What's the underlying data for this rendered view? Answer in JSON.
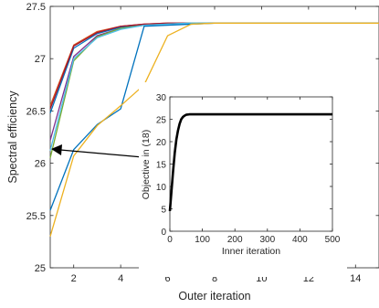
{
  "chart_data": [
    {
      "type": "line",
      "xlabel": "Outer iteration",
      "ylabel": "Spectral efficiency",
      "xlim": [
        1,
        15
      ],
      "ylim": [
        25,
        27.5
      ],
      "xticks": [
        2,
        4,
        6,
        8,
        10,
        12,
        14
      ],
      "yticks": [
        25,
        25.5,
        26,
        26.5,
        27,
        27.5
      ],
      "grid": false,
      "series": [
        {
          "color": "#0072BD",
          "x": [
            1,
            2,
            3,
            4,
            5,
            6,
            7,
            8,
            15
          ],
          "y": [
            26.48,
            27.1,
            27.24,
            27.3,
            27.32,
            27.33,
            27.34,
            27.34,
            27.34
          ]
        },
        {
          "color": "#D95319",
          "x": [
            1,
            2,
            3,
            4,
            5,
            6,
            7,
            8,
            15
          ],
          "y": [
            26.55,
            27.13,
            27.26,
            27.31,
            27.33,
            27.34,
            27.34,
            27.34,
            27.34
          ]
        },
        {
          "color": "#A2142F",
          "x": [
            1,
            2,
            3,
            4,
            5,
            6,
            7,
            8,
            15
          ],
          "y": [
            26.52,
            27.12,
            27.25,
            27.31,
            27.33,
            27.34,
            27.34,
            27.34,
            27.34
          ]
        },
        {
          "color": "#7E2F8E",
          "x": [
            1,
            2,
            3,
            4,
            5,
            6,
            7,
            8,
            15
          ],
          "y": [
            26.22,
            27.02,
            27.22,
            27.29,
            27.32,
            27.33,
            27.34,
            27.34,
            27.34
          ]
        },
        {
          "color": "#77AC30",
          "x": [
            1,
            2,
            3,
            4,
            5,
            6,
            7,
            8,
            15
          ],
          "y": [
            26.05,
            26.98,
            27.21,
            27.29,
            27.32,
            27.33,
            27.34,
            27.34,
            27.34
          ]
        },
        {
          "color": "#4DBEEE",
          "x": [
            1,
            2,
            3,
            4,
            5,
            6,
            7,
            8,
            15
          ],
          "y": [
            26.12,
            27.0,
            27.2,
            27.28,
            27.32,
            27.33,
            27.34,
            27.34,
            27.34
          ]
        },
        {
          "color": "#0072BD",
          "x": [
            1,
            2,
            3,
            4,
            5,
            6,
            7,
            8,
            15
          ],
          "y": [
            25.55,
            26.13,
            26.37,
            26.52,
            27.31,
            27.32,
            27.33,
            27.34,
            27.34
          ]
        },
        {
          "color": "#EDB120",
          "x": [
            1,
            2,
            3,
            4,
            5,
            6,
            7,
            8,
            15
          ],
          "y": [
            25.3,
            26.07,
            26.36,
            26.55,
            26.75,
            27.22,
            27.33,
            27.34,
            27.34
          ]
        }
      ]
    },
    {
      "type": "line",
      "xlabel": "Inner iteration",
      "ylabel": "Objective in (18)",
      "xlim": [
        0,
        500
      ],
      "ylim": [
        0,
        30
      ],
      "xticks": [
        0,
        100,
        200,
        300,
        400,
        500
      ],
      "yticks": [
        0,
        5,
        10,
        15,
        20,
        25,
        30
      ],
      "grid": false,
      "series": [
        {
          "color": "#000000",
          "x": [
            0,
            5,
            10,
            15,
            20,
            25,
            30,
            35,
            40,
            45,
            50,
            60,
            70,
            80,
            100,
            200,
            300,
            400,
            500
          ],
          "y": [
            4.5,
            9.0,
            13.5,
            17.5,
            20.5,
            22.5,
            24.0,
            25.0,
            25.5,
            25.8,
            26.0,
            26.1,
            26.1,
            26.1,
            26.1,
            26.1,
            26.1,
            26.1,
            26.1
          ]
        }
      ]
    }
  ]
}
